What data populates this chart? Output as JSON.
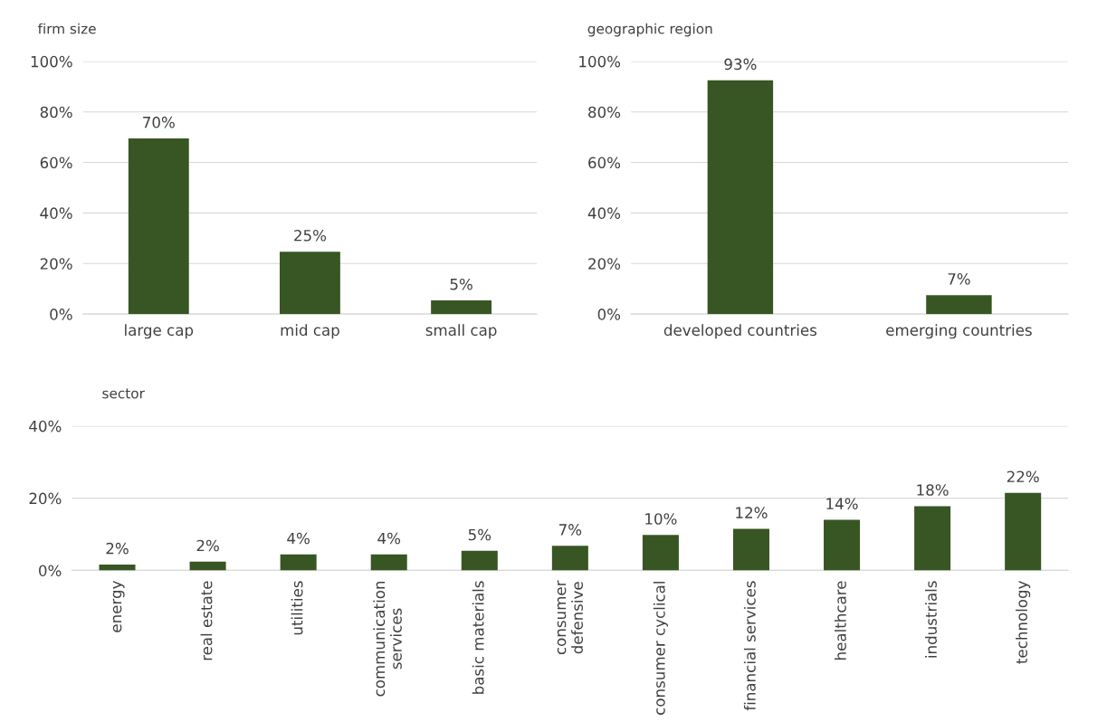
{
  "chart_data": [
    {
      "type": "bar",
      "title": "firm size",
      "categories": [
        "large cap",
        "mid cap",
        "small cap"
      ],
      "values": [
        69.5,
        24.7,
        5.4
      ],
      "value_labels": [
        "70%",
        "25%",
        "5%"
      ],
      "color": "#375623",
      "ylim": [
        0,
        100
      ],
      "yticks": [
        {
          "value": 0,
          "label": "0%"
        },
        {
          "value": 20,
          "label": "20%"
        },
        {
          "value": 40,
          "label": "40%"
        },
        {
          "value": 60,
          "label": "60%"
        },
        {
          "value": 80,
          "label": "80%"
        },
        {
          "value": 100,
          "label": "100%"
        }
      ],
      "grid": "y",
      "legend": false
    },
    {
      "type": "bar",
      "title": "geographic region",
      "categories": [
        "developed countries",
        "emerging countries"
      ],
      "values": [
        92.5,
        7.5
      ],
      "value_labels": [
        "93%",
        "7%"
      ],
      "color": "#375623",
      "ylim": [
        0,
        100
      ],
      "yticks": [
        {
          "value": 0,
          "label": "0%"
        },
        {
          "value": 20,
          "label": "20%"
        },
        {
          "value": 40,
          "label": "40%"
        },
        {
          "value": 60,
          "label": "60%"
        },
        {
          "value": 80,
          "label": "80%"
        },
        {
          "value": 100,
          "label": "100%"
        }
      ],
      "grid": "y",
      "legend": false
    },
    {
      "type": "bar",
      "title": "sector",
      "categories": [
        "energy",
        "real estate",
        "utilities",
        "communication\nservices",
        "basic materials",
        "consumer\ndefensive",
        "consumer cyclical",
        "financial services",
        "healthcare",
        "industrials",
        "technology"
      ],
      "values": [
        1.6,
        2.4,
        4.4,
        4.4,
        5.4,
        6.8,
        9.8,
        11.5,
        14,
        17.8,
        21.5
      ],
      "value_labels": [
        "2%",
        "2%",
        "4%",
        "4%",
        "5%",
        "7%",
        "10%",
        "12%",
        "14%",
        "18%",
        "22%"
      ],
      "color": "#375623",
      "ylim": [
        0,
        40
      ],
      "yticks": [
        {
          "value": 0,
          "label": "0%"
        },
        {
          "value": 20,
          "label": "20%"
        },
        {
          "value": 40,
          "label": "40%"
        }
      ],
      "grid": "y",
      "legend": false
    }
  ]
}
